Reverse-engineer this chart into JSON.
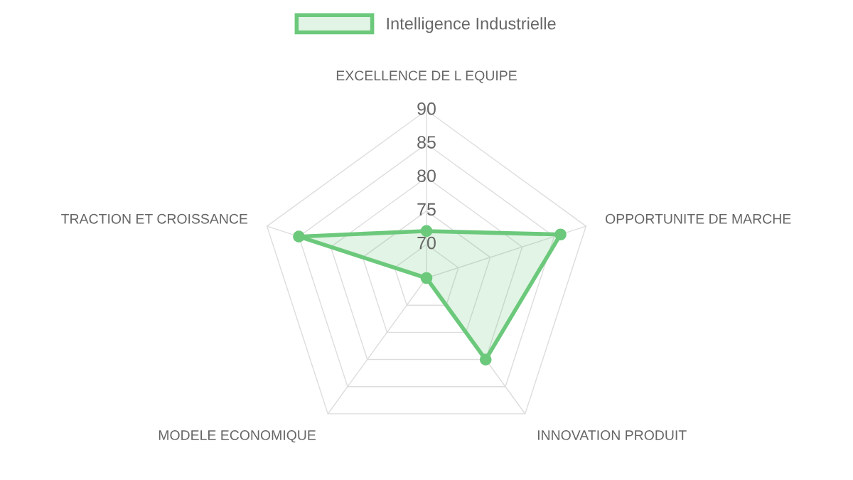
{
  "chart_data": {
    "type": "radar",
    "categories": [
      "EXCELLENCE DE L EQUIPE",
      "OPPORTUNITE DE MARCHE",
      "INNOVATION PRODUIT",
      "MODELE ECONOMIQUE",
      "TRACTION ET CROISSANCE"
    ],
    "series": [
      {
        "name": "Intelligence Industrielle",
        "color": "#6cc97c",
        "values": [
          72,
          86,
          80,
          65,
          85
        ]
      }
    ],
    "ylim": [
      65,
      90
    ],
    "yticks": [
      70,
      75,
      80,
      85,
      90
    ],
    "grid": true,
    "legend": "top",
    "marker": "circle"
  }
}
